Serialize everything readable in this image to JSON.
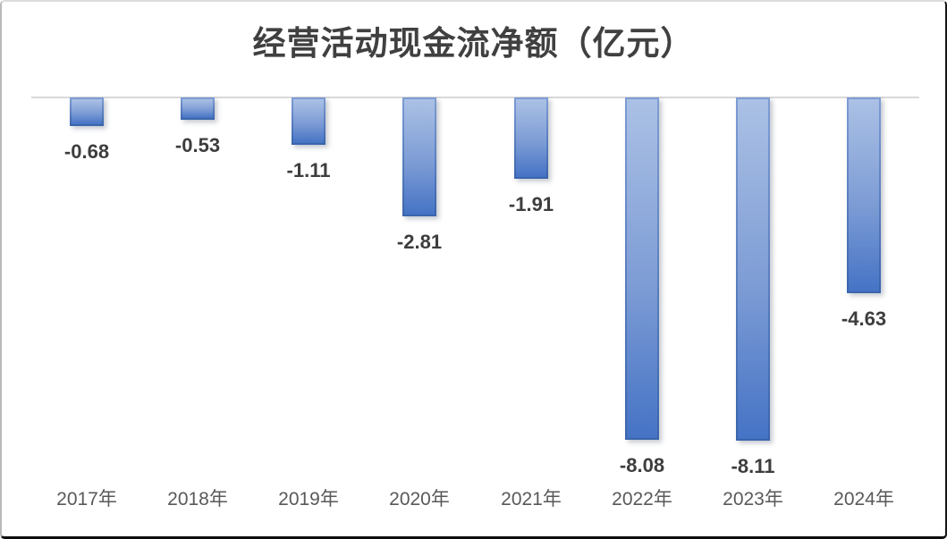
{
  "chart_data": {
    "type": "bar",
    "title": "经营活动现金流净额（亿元）",
    "categories": [
      "2017年",
      "2018年",
      "2019年",
      "2020年",
      "2021年",
      "2022年",
      "2023年",
      "2024年"
    ],
    "values": [
      -0.68,
      -0.53,
      -1.11,
      -2.81,
      -1.91,
      -8.08,
      -8.11,
      -4.63
    ],
    "data_labels": [
      "-0.68",
      "-0.53",
      "-1.11",
      "-2.81",
      "-1.91",
      "-8.08",
      "-8.11",
      "-4.63"
    ],
    "xlabel": "",
    "ylabel": "",
    "ylim": [
      -8.5,
      0
    ],
    "grid": false,
    "legend": false,
    "axis_line": "zero-baseline-top",
    "colors": {
      "bar_gradient_top": "#abc1e5",
      "bar_gradient_bottom": "#4573c5",
      "bar_border_top": "#7e9cd4",
      "bar_border_bottom": "#3a65ac",
      "zero_line": "#d9d9d9",
      "title_text": "#404040",
      "value_label_text": "#3d3d3d",
      "tick_text": "#595959",
      "background": "#ffffff"
    }
  }
}
